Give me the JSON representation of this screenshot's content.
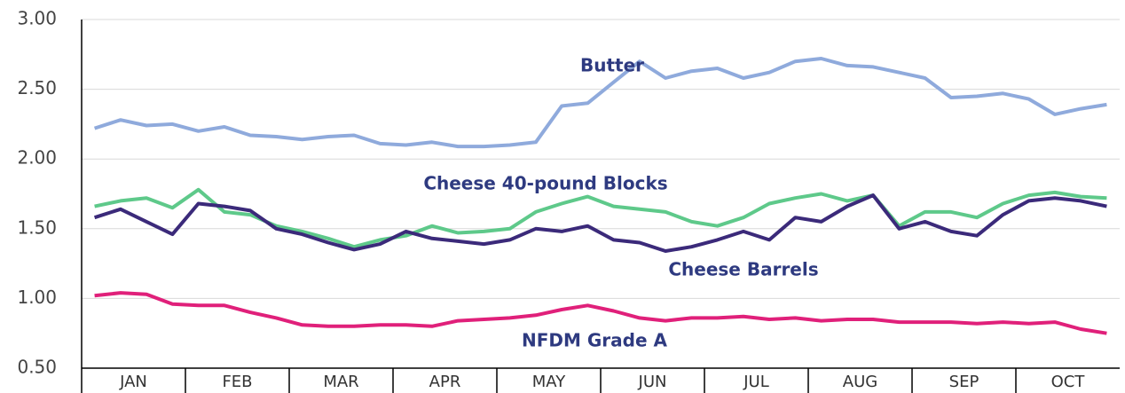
{
  "chart_data": {
    "type": "line",
    "categories": [
      "JAN",
      null,
      null,
      null,
      "FEB",
      null,
      null,
      null,
      "MAR",
      null,
      null,
      null,
      "APR",
      null,
      null,
      null,
      "MAY",
      null,
      null,
      null,
      "JUN",
      null,
      null,
      null,
      "JUL",
      null,
      null,
      null,
      "AUG",
      null,
      null,
      null,
      "SEP",
      null,
      null,
      null,
      "OCT",
      null,
      null,
      null
    ],
    "series": [
      {
        "name": "Butter",
        "color": "#8faadc",
        "values": [
          2.22,
          2.28,
          2.24,
          2.25,
          2.2,
          2.23,
          2.17,
          2.16,
          2.14,
          2.16,
          2.17,
          2.11,
          2.1,
          2.12,
          2.09,
          2.09,
          2.1,
          2.12,
          2.38,
          2.4,
          2.55,
          2.7,
          2.58,
          2.63,
          2.65,
          2.58,
          2.62,
          2.7,
          2.72,
          2.67,
          2.66,
          2.62,
          2.58,
          2.44,
          2.45,
          2.47,
          2.43,
          2.32,
          2.36,
          2.39
        ]
      },
      {
        "name": "Cheese 40-pound Blocks",
        "color": "#5ec98a",
        "values": [
          1.66,
          1.7,
          1.72,
          1.65,
          1.78,
          1.62,
          1.6,
          1.52,
          1.48,
          1.43,
          1.37,
          1.42,
          1.45,
          1.52,
          1.47,
          1.48,
          1.5,
          1.62,
          1.68,
          1.73,
          1.66,
          1.64,
          1.62,
          1.55,
          1.52,
          1.58,
          1.68,
          1.72,
          1.75,
          1.7,
          1.74,
          1.52,
          1.62,
          1.62,
          1.58,
          1.68,
          1.74,
          1.76,
          1.73,
          1.72
        ]
      },
      {
        "name": "Cheese Barrels",
        "color": "#3b2a7a",
        "values": [
          1.58,
          1.64,
          1.55,
          1.46,
          1.68,
          1.66,
          1.63,
          1.5,
          1.46,
          1.4,
          1.35,
          1.39,
          1.48,
          1.43,
          1.41,
          1.39,
          1.42,
          1.5,
          1.48,
          1.52,
          1.42,
          1.4,
          1.34,
          1.37,
          1.42,
          1.48,
          1.42,
          1.58,
          1.55,
          1.66,
          1.74,
          1.5,
          1.55,
          1.48,
          1.45,
          1.6,
          1.7,
          1.72,
          1.7,
          1.66
        ]
      },
      {
        "name": "NFDM Grade A",
        "color": "#e0207a",
        "values": [
          1.02,
          1.04,
          1.03,
          0.96,
          0.95,
          0.95,
          0.9,
          0.86,
          0.81,
          0.8,
          0.8,
          0.81,
          0.81,
          0.8,
          0.84,
          0.85,
          0.86,
          0.88,
          0.92,
          0.95,
          0.91,
          0.86,
          0.84,
          0.86,
          0.86,
          0.87,
          0.85,
          0.86,
          0.84,
          0.85,
          0.85,
          0.83,
          0.83,
          0.83,
          0.82,
          0.83,
          0.82,
          0.83,
          0.78,
          0.75
        ]
      }
    ],
    "ylim": [
      0.5,
      3.0
    ],
    "yticks": [
      {
        "value": 0.5,
        "label": "0.50"
      },
      {
        "value": 1.0,
        "label": "1.00"
      },
      {
        "value": 1.5,
        "label": "1.50"
      },
      {
        "value": 2.0,
        "label": "2.00"
      },
      {
        "value": 2.5,
        "label": "2.50"
      },
      {
        "value": 3.0,
        "label": "3.00"
      }
    ],
    "grid": true
  }
}
